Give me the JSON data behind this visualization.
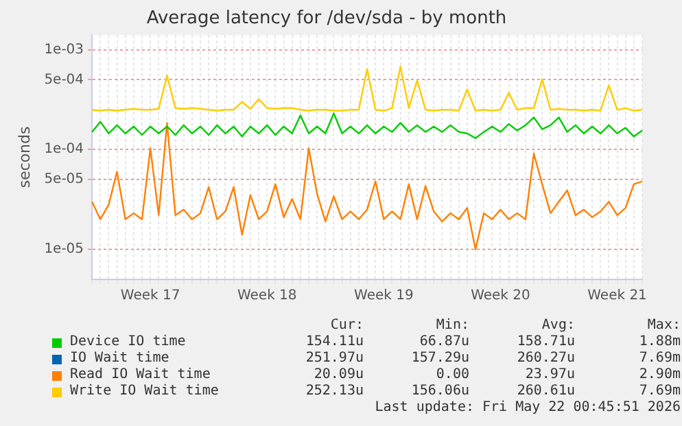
{
  "chart_data": {
    "type": "line",
    "title": "Average latency for /dev/sda - by month",
    "ylabel": "seconds",
    "log": "y",
    "grid": true,
    "legend": "bottom",
    "marker": "none",
    "line_style": "solid",
    "categories": [
      null,
      null,
      null,
      null,
      null,
      null,
      null,
      "Week 17",
      null,
      null,
      null,
      null,
      null,
      null,
      null,
      null,
      null,
      null,
      null,
      null,
      null,
      "Week 18",
      null,
      null,
      null,
      null,
      null,
      null,
      null,
      null,
      null,
      null,
      null,
      null,
      null,
      "Week 19",
      null,
      null,
      null,
      null,
      null,
      null,
      null,
      null,
      null,
      null,
      null,
      null,
      null,
      "Week 20",
      null,
      null,
      null,
      null,
      null,
      null,
      null,
      null,
      null,
      null,
      null,
      null,
      null,
      "Week 21",
      null,
      null,
      null
    ],
    "ylim": [
      5e-06,
      0.0014
    ],
    "yticks": [
      {
        "value": 1e-05,
        "label": "1e-05"
      },
      {
        "value": 5e-05,
        "label": "5e-05"
      },
      {
        "value": 0.0001,
        "label": "1e-04"
      },
      {
        "value": 0.0005,
        "label": "5e-04"
      },
      {
        "value": 0.001,
        "label": "1e-03"
      }
    ],
    "annotations": [
      "Cur:",
      "Min:",
      "Avg:",
      "Max:",
      "154.11u",
      "66.87u",
      "158.71u",
      "1.88m",
      "251.97u",
      "157.29u",
      "260.27u",
      "7.69m",
      "20.09u",
      "0.00",
      "23.97u",
      "2.90m",
      "252.13u",
      "156.06u",
      "260.61u",
      "7.69m",
      "Last update: Fri May 22 00:45:51 2026"
    ],
    "series": [
      {
        "name": "Device IO time",
        "color": "#00cc00",
        "values": [
          0.00015,
          0.00019,
          0.000145,
          0.000175,
          0.000145,
          0.00017,
          0.00014,
          0.00017,
          0.000145,
          0.00017,
          0.00014,
          0.000175,
          0.000145,
          0.00017,
          0.00014,
          0.000175,
          0.000145,
          0.00017,
          0.000135,
          0.00017,
          0.000145,
          0.000175,
          0.00014,
          0.00017,
          0.000145,
          0.00022,
          0.000145,
          0.00017,
          0.000145,
          0.00023,
          0.000145,
          0.00017,
          0.000145,
          0.000175,
          0.000145,
          0.00017,
          0.00015,
          0.000185,
          0.00015,
          0.000175,
          0.00015,
          0.00017,
          0.00015,
          0.000175,
          0.00015,
          0.000145,
          0.00013,
          0.00015,
          0.00017,
          0.00015,
          0.00018,
          0.000155,
          0.000175,
          0.00021,
          0.00016,
          0.000175,
          0.00021,
          0.00015,
          0.000175,
          0.000145,
          0.00017,
          0.000145,
          0.000175,
          0.000145,
          0.000165,
          0.000135,
          0.000155
        ]
      },
      {
        "name": "IO Wait time",
        "color": "#0066b3",
        "values": [
          null,
          null,
          null,
          null,
          null,
          null,
          null,
          null,
          null,
          null,
          null,
          null,
          null,
          null,
          null,
          null,
          null,
          null,
          null,
          null,
          null,
          null,
          null,
          null,
          null,
          null,
          null,
          null,
          null,
          null,
          null,
          null,
          null,
          null,
          null,
          null,
          null,
          null,
          null,
          null,
          null,
          null,
          null,
          null,
          null,
          null,
          null,
          null,
          null,
          null,
          null,
          null,
          null,
          null,
          null,
          null,
          null,
          null,
          null,
          null,
          null,
          null,
          null,
          null,
          null,
          null,
          null
        ]
      },
      {
        "name": "Read IO Wait time",
        "color": "#ff8000",
        "values": [
          3e-05,
          2e-05,
          2.8e-05,
          6e-05,
          2e-05,
          2.3e-05,
          2e-05,
          0.000103,
          2.2e-05,
          0.000185,
          2.2e-05,
          2.5e-05,
          2e-05,
          2.3e-05,
          4.2e-05,
          2e-05,
          2.4e-05,
          4.2e-05,
          1.4e-05,
          3.5e-05,
          2e-05,
          2.4e-05,
          4.5e-05,
          2.1e-05,
          3.2e-05,
          2e-05,
          0.000103,
          3.6e-05,
          1.9e-05,
          3.4e-05,
          2e-05,
          2.4e-05,
          2e-05,
          2.5e-05,
          4.8e-05,
          2e-05,
          2.4e-05,
          2e-05,
          4.5e-05,
          2e-05,
          4.3e-05,
          2.4e-05,
          1.9e-05,
          2.3e-05,
          2e-05,
          2.6e-05,
          1e-05,
          2.3e-05,
          2e-05,
          2.5e-05,
          2e-05,
          2.3e-05,
          2e-05,
          9.1e-05,
          4.5e-05,
          2.3e-05,
          3e-05,
          3.9e-05,
          2.2e-05,
          2.5e-05,
          2.1e-05,
          2.4e-05,
          3e-05,
          2.2e-05,
          2.6e-05,
          4.5e-05,
          4.8e-05
        ]
      },
      {
        "name": "Write IO Wait time",
        "color": "#ffcc00",
        "values": [
          0.00025,
          0.000245,
          0.00025,
          0.000245,
          0.00025,
          0.000255,
          0.00025,
          0.00025,
          0.000255,
          0.00055,
          0.00026,
          0.000255,
          0.00026,
          0.000255,
          0.00025,
          0.000245,
          0.00025,
          0.00025,
          0.0003,
          0.000255,
          0.00032,
          0.00026,
          0.000255,
          0.00026,
          0.00026,
          0.00025,
          0.000245,
          0.00025,
          0.00025,
          0.000245,
          0.000245,
          0.00025,
          0.00025,
          0.00064,
          0.00025,
          0.000245,
          0.00026,
          0.00068,
          0.00026,
          0.000495,
          0.00025,
          0.000245,
          0.00025,
          0.00025,
          0.000245,
          0.0004,
          0.000245,
          0.00025,
          0.000245,
          0.00025,
          0.00037,
          0.00025,
          0.00026,
          0.00026,
          0.000506,
          0.00025,
          0.000255,
          0.00025,
          0.00025,
          0.000245,
          0.00025,
          0.000245,
          0.00044,
          0.00025,
          0.00026,
          0.000245,
          0.00025
        ]
      }
    ]
  }
}
